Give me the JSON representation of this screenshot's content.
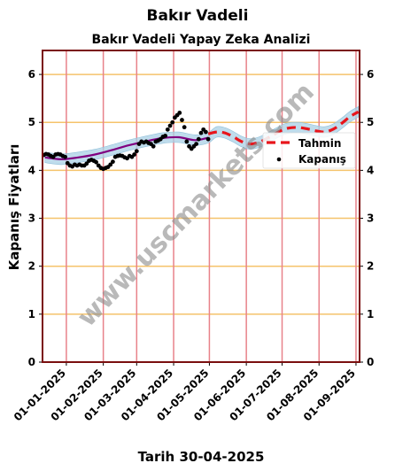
{
  "chart_data": {
    "type": "line",
    "title": "Bakır Vadeli",
    "subtitle": "Bakır Vadeli Yapay Zeka Analizi",
    "xlabel": "Tarih 30-04-2025",
    "ylabel": "Kapanış Fiyatları",
    "ylim": [
      0,
      6.5
    ],
    "xlim": [
      "2024-12-12",
      "2025-09-04"
    ],
    "y_ticks": [
      "0",
      "1",
      "2",
      "3",
      "4",
      "5",
      "6"
    ],
    "x_ticks": [
      "01-01-2025",
      "01-02-2025",
      "01-03-2025",
      "01-04-2025",
      "01-05-2025",
      "01-06-2025",
      "01-07-2025",
      "01-08-2025",
      "01-09-2025"
    ],
    "watermark": "www.uscmarkets.com",
    "legend": {
      "position": "right",
      "items": [
        "Tahmin",
        "Kapanış"
      ]
    },
    "colors": {
      "forecast": "#e8141b",
      "trend": "#800080",
      "band": "#a9d0e6",
      "points": "#000000",
      "gridline_v": "#e8828a",
      "gridline_h": "#f5c36b",
      "frame": "#7a0f0f"
    },
    "series": [
      {
        "name": "Tahmin",
        "style": "dashed",
        "x": [
          "2025-04-30",
          "2025-05-07",
          "2025-05-14",
          "2025-05-21",
          "2025-05-28",
          "2025-06-04",
          "2025-06-11",
          "2025-06-18",
          "2025-06-25",
          "2025-07-02",
          "2025-07-09",
          "2025-07-16",
          "2025-07-23",
          "2025-07-30",
          "2025-08-06",
          "2025-08-13",
          "2025-08-20",
          "2025-08-27",
          "2025-09-03"
        ],
        "y": [
          4.76,
          4.8,
          4.78,
          4.7,
          4.6,
          4.55,
          4.58,
          4.66,
          4.76,
          4.85,
          4.89,
          4.89,
          4.86,
          4.82,
          4.8,
          4.86,
          4.98,
          5.12,
          5.22
        ]
      },
      {
        "name": "trend",
        "style": "solid",
        "x": [
          "2024-12-14",
          "2024-12-28",
          "2025-01-11",
          "2025-01-25",
          "2025-02-08",
          "2025-02-22",
          "2025-03-08",
          "2025-03-22",
          "2025-04-05",
          "2025-04-19",
          "2025-04-30"
        ],
        "y": [
          4.27,
          4.23,
          4.27,
          4.33,
          4.42,
          4.52,
          4.6,
          4.67,
          4.69,
          4.63,
          4.68
        ]
      },
      {
        "name": "Kapanış",
        "style": "points",
        "x": [
          "2024-12-13",
          "2024-12-15",
          "2024-12-17",
          "2024-12-19",
          "2024-12-21",
          "2024-12-23",
          "2024-12-25",
          "2024-12-27",
          "2024-12-29",
          "2024-12-31",
          "2025-01-02",
          "2025-01-04",
          "2025-01-06",
          "2025-01-08",
          "2025-01-10",
          "2025-01-12",
          "2025-01-14",
          "2025-01-16",
          "2025-01-18",
          "2025-01-20",
          "2025-01-22",
          "2025-01-24",
          "2025-01-26",
          "2025-01-28",
          "2025-01-30",
          "2025-02-01",
          "2025-02-03",
          "2025-02-05",
          "2025-02-07",
          "2025-02-09",
          "2025-02-11",
          "2025-02-13",
          "2025-02-15",
          "2025-02-17",
          "2025-02-19",
          "2025-02-21",
          "2025-02-23",
          "2025-02-25",
          "2025-02-27",
          "2025-03-01",
          "2025-03-03",
          "2025-03-05",
          "2025-03-07",
          "2025-03-09",
          "2025-03-11",
          "2025-03-13",
          "2025-03-15",
          "2025-03-17",
          "2025-03-19",
          "2025-03-21",
          "2025-03-23",
          "2025-03-25",
          "2025-03-27",
          "2025-03-29",
          "2025-03-31",
          "2025-04-02",
          "2025-04-04",
          "2025-04-06",
          "2025-04-08",
          "2025-04-10",
          "2025-04-12",
          "2025-04-14",
          "2025-04-16",
          "2025-04-18",
          "2025-04-20",
          "2025-04-22",
          "2025-04-24",
          "2025-04-26",
          "2025-04-28",
          "2025-04-30"
        ],
        "y": [
          4.32,
          4.34,
          4.33,
          4.3,
          4.28,
          4.33,
          4.34,
          4.33,
          4.3,
          4.28,
          4.15,
          4.1,
          4.08,
          4.12,
          4.1,
          4.12,
          4.1,
          4.1,
          4.14,
          4.2,
          4.22,
          4.2,
          4.17,
          4.1,
          4.05,
          4.03,
          4.05,
          4.07,
          4.12,
          4.18,
          4.28,
          4.3,
          4.31,
          4.3,
          4.27,
          4.25,
          4.3,
          4.28,
          4.33,
          4.4,
          4.55,
          4.6,
          4.58,
          4.6,
          4.57,
          4.55,
          4.5,
          4.6,
          4.62,
          4.65,
          4.7,
          4.72,
          4.85,
          4.93,
          5.0,
          5.1,
          5.15,
          5.2,
          5.05,
          4.9,
          4.6,
          4.5,
          4.45,
          4.5,
          4.55,
          4.65,
          4.78,
          4.85,
          4.8,
          4.65
        ]
      }
    ]
  }
}
